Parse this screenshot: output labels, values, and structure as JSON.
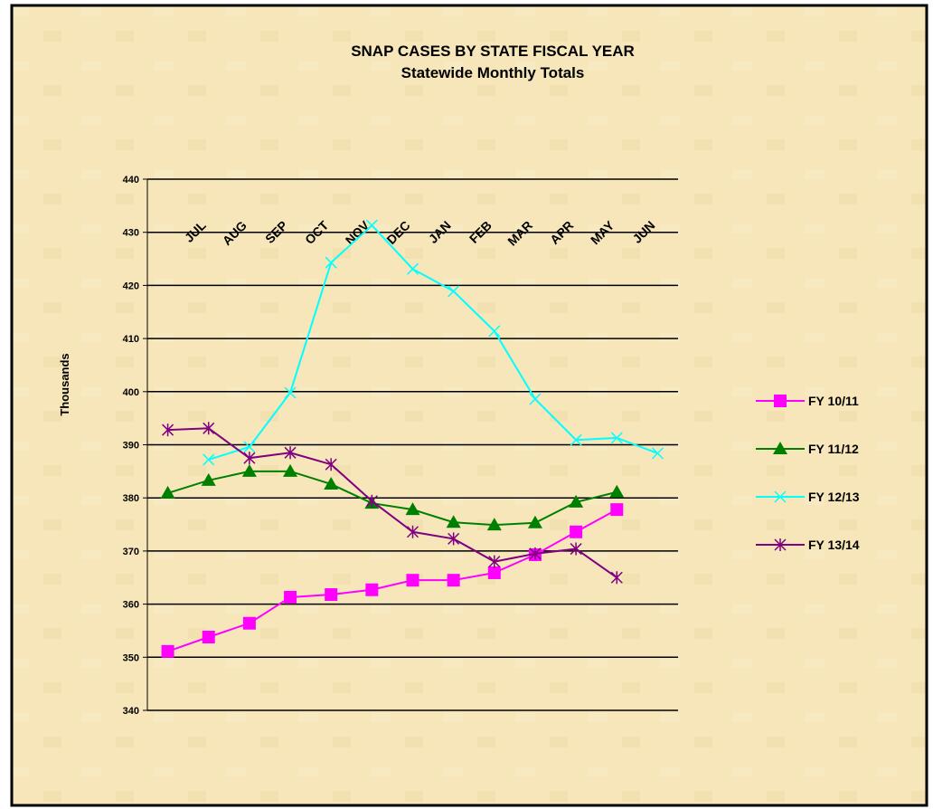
{
  "chart_data": {
    "type": "line",
    "title": "SNAP CASES BY STATE FISCAL YEAR",
    "subtitle": "Statewide Monthly Totals",
    "y_label": "Thousands",
    "categories": [
      null,
      "JUL",
      "AUG",
      "SEP",
      "OCT",
      "NOV",
      "DEC",
      "JAN",
      "FEB",
      "MAR",
      "APR",
      "MAY",
      "JUN"
    ],
    "ylim": [
      340,
      440
    ],
    "yticks": [
      340,
      350,
      360,
      370,
      380,
      390,
      400,
      410,
      420,
      430,
      440
    ],
    "grid": true,
    "legend": "right",
    "series": [
      {
        "name": "FY 10/11",
        "color": "#ff00ff",
        "marker": "square",
        "values": [
          351.1,
          353.8,
          356.4,
          361.3,
          361.8,
          362.7,
          364.5,
          364.5,
          365.9,
          369.3,
          373.6,
          377.8,
          null
        ]
      },
      {
        "name": "FY 11/12",
        "color": "#008000",
        "marker": "triangle",
        "values": [
          380.9,
          383.3,
          385.0,
          385.0,
          382.6,
          379.0,
          377.8,
          375.4,
          374.9,
          375.3,
          379.2,
          381.1,
          null
        ]
      },
      {
        "name": "FY 12/13",
        "color": "#00ffff",
        "marker": "x",
        "values": [
          null,
          387.2,
          389.6,
          399.8,
          424.3,
          431.3,
          423.1,
          418.9,
          411.4,
          398.6,
          390.9,
          391.3,
          388.4
        ]
      },
      {
        "name": "FY 13/14",
        "color": "#800080",
        "marker": "star",
        "values": [
          392.8,
          393.1,
          387.5,
          388.5,
          386.3,
          379.4,
          373.6,
          372.3,
          368.0,
          369.5,
          370.4,
          365.0,
          null
        ]
      }
    ]
  }
}
